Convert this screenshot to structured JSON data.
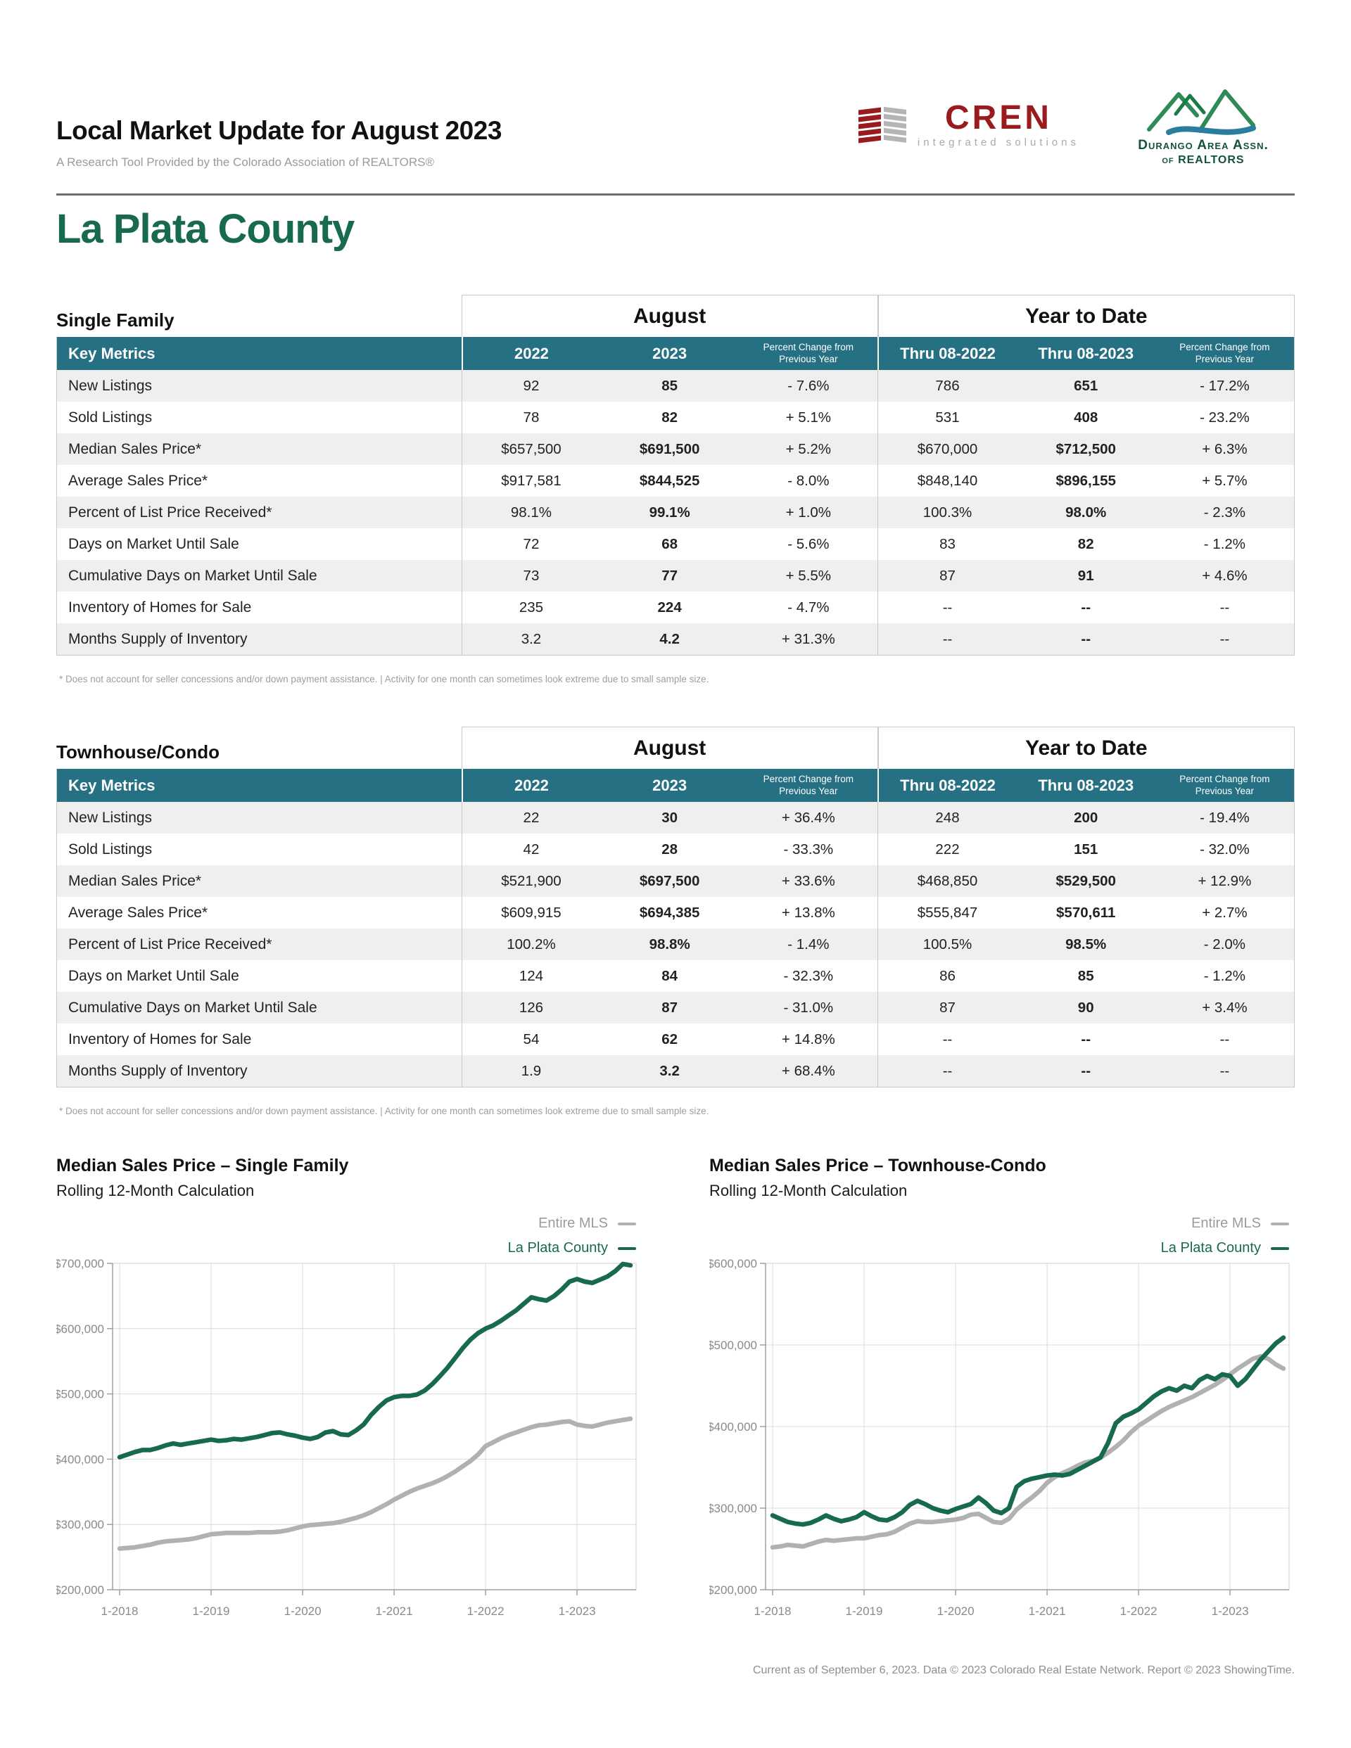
{
  "header": {
    "title": "Local Market Update for August 2023",
    "subtitle": "A Research Tool Provided by the Colorado Association of REALTORS®",
    "logos": {
      "cren": {
        "name": "CREN",
        "tagline": "integrated solutions",
        "accent_red": "#9a1b1e",
        "accent_gray": "#b5b5b5"
      },
      "daar": {
        "line1": "Durango Area Assn.",
        "line2": "of REALTORS",
        "accent_green": "#2e8b57",
        "accent_blue": "#2a7d9e"
      }
    }
  },
  "county": "La Plata County",
  "colors": {
    "accent_teal": "#267083",
    "brand_green": "#176a4b",
    "line_gray": "#b1b1b1",
    "row_stripe": "#efefef"
  },
  "tables": [
    {
      "section_label": "Single Family",
      "period_headers": [
        "August",
        "Year to Date"
      ],
      "columns": [
        "Key Metrics",
        "2022",
        "2023",
        "Percent Change from Previous Year",
        "Thru 08-2022",
        "Thru 08-2023",
        "Percent Change from Previous Year"
      ],
      "rows": [
        {
          "metric": "New Listings",
          "values": [
            "92",
            "85",
            "- 7.6%",
            "786",
            "651",
            "- 17.2%"
          ]
        },
        {
          "metric": "Sold Listings",
          "values": [
            "78",
            "82",
            "+ 5.1%",
            "531",
            "408",
            "- 23.2%"
          ]
        },
        {
          "metric": "Median Sales Price*",
          "values": [
            "$657,500",
            "$691,500",
            "+ 5.2%",
            "$670,000",
            "$712,500",
            "+ 6.3%"
          ]
        },
        {
          "metric": "Average Sales Price*",
          "values": [
            "$917,581",
            "$844,525",
            "- 8.0%",
            "$848,140",
            "$896,155",
            "+ 5.7%"
          ]
        },
        {
          "metric": "Percent of List Price Received*",
          "values": [
            "98.1%",
            "99.1%",
            "+ 1.0%",
            "100.3%",
            "98.0%",
            "- 2.3%"
          ]
        },
        {
          "metric": "Days on Market Until Sale",
          "values": [
            "72",
            "68",
            "- 5.6%",
            "83",
            "82",
            "- 1.2%"
          ]
        },
        {
          "metric": "Cumulative Days on Market Until Sale",
          "values": [
            "73",
            "77",
            "+ 5.5%",
            "87",
            "91",
            "+ 4.6%"
          ]
        },
        {
          "metric": "Inventory of Homes for Sale",
          "values": [
            "235",
            "224",
            "- 4.7%",
            "--",
            "--",
            "--"
          ]
        },
        {
          "metric": "Months Supply of Inventory",
          "values": [
            "3.2",
            "4.2",
            "+ 31.3%",
            "--",
            "--",
            "--"
          ]
        }
      ],
      "footnote": "* Does not account for seller concessions and/or down payment assistance.  |  Activity for one month can sometimes look extreme due to small sample size."
    },
    {
      "section_label": "Townhouse/Condo",
      "period_headers": [
        "August",
        "Year to Date"
      ],
      "columns": [
        "Key Metrics",
        "2022",
        "2023",
        "Percent Change from Previous Year",
        "Thru 08-2022",
        "Thru 08-2023",
        "Percent Change from Previous Year"
      ],
      "rows": [
        {
          "metric": "New Listings",
          "values": [
            "22",
            "30",
            "+ 36.4%",
            "248",
            "200",
            "- 19.4%"
          ]
        },
        {
          "metric": "Sold Listings",
          "values": [
            "42",
            "28",
            "- 33.3%",
            "222",
            "151",
            "- 32.0%"
          ]
        },
        {
          "metric": "Median Sales Price*",
          "values": [
            "$521,900",
            "$697,500",
            "+ 33.6%",
            "$468,850",
            "$529,500",
            "+ 12.9%"
          ]
        },
        {
          "metric": "Average Sales Price*",
          "values": [
            "$609,915",
            "$694,385",
            "+ 13.8%",
            "$555,847",
            "$570,611",
            "+ 2.7%"
          ]
        },
        {
          "metric": "Percent of List Price Received*",
          "values": [
            "100.2%",
            "98.8%",
            "- 1.4%",
            "100.5%",
            "98.5%",
            "- 2.0%"
          ]
        },
        {
          "metric": "Days on Market Until Sale",
          "values": [
            "124",
            "84",
            "- 32.3%",
            "86",
            "85",
            "- 1.2%"
          ]
        },
        {
          "metric": "Cumulative Days on Market Until Sale",
          "values": [
            "126",
            "87",
            "- 31.0%",
            "87",
            "90",
            "+ 3.4%"
          ]
        },
        {
          "metric": "Inventory of Homes for Sale",
          "values": [
            "54",
            "62",
            "+ 14.8%",
            "--",
            "--",
            "--"
          ]
        },
        {
          "metric": "Months Supply of Inventory",
          "values": [
            "1.9",
            "3.2",
            "+ 68.4%",
            "--",
            "--",
            "--"
          ]
        }
      ],
      "footnote": "* Does not account for seller concessions and/or down payment assistance.  |  Activity for one month can sometimes look extreme due to small sample size."
    }
  ],
  "chart_data": [
    {
      "type": "line",
      "title": "Median Sales Price – Single Family",
      "subtitle": "Rolling 12-Month Calculation",
      "legend_position": "top-right",
      "grid": true,
      "x_range": {
        "start": "1-2018",
        "end": "8-2023",
        "cadence": "monthly",
        "points": 68
      },
      "x_ticks": [
        {
          "label": "1-2018",
          "m": 0
        },
        {
          "label": "1-2019",
          "m": 12
        },
        {
          "label": "1-2020",
          "m": 24
        },
        {
          "label": "1-2021",
          "m": 36
        },
        {
          "label": "1-2022",
          "m": 48
        },
        {
          "label": "1-2023",
          "m": 60
        }
      ],
      "y_axis": {
        "min_usd_k": 200,
        "max_usd_k": 700,
        "tick_step_usd_k": 100,
        "tick_labels": [
          "$200,000",
          "$300,000",
          "$400,000",
          "$500,000",
          "$600,000",
          "$700,000"
        ]
      },
      "series": [
        {
          "name": "Entire MLS",
          "color": "#b1b1b1",
          "values_usd_k": [
            263,
            264,
            265,
            267,
            269,
            272,
            274,
            275,
            276,
            277,
            279,
            282,
            285,
            286,
            287,
            287,
            287,
            287,
            288,
            288,
            288,
            289,
            291,
            294,
            297,
            299,
            300,
            301,
            302,
            304,
            307,
            310,
            314,
            319,
            325,
            331,
            338,
            344,
            350,
            355,
            359,
            363,
            368,
            374,
            381,
            389,
            397,
            407,
            420,
            426,
            432,
            437,
            441,
            445,
            449,
            452,
            453,
            455,
            457,
            458,
            453,
            451,
            450,
            453,
            456,
            458,
            460,
            462
          ]
        },
        {
          "name": "La Plata County",
          "color": "#176a4b",
          "values_usd_k": [
            403,
            407,
            411,
            414,
            414,
            417,
            421,
            424,
            422,
            424,
            426,
            428,
            430,
            428,
            429,
            431,
            430,
            432,
            434,
            437,
            440,
            441,
            438,
            436,
            433,
            431,
            434,
            441,
            443,
            438,
            437,
            444,
            453,
            468,
            480,
            490,
            495,
            497,
            497,
            499,
            505,
            515,
            527,
            540,
            555,
            570,
            583,
            593,
            600,
            605,
            612,
            620,
            628,
            638,
            648,
            645,
            643,
            650,
            660,
            672,
            676,
            672,
            670,
            675,
            680,
            688,
            699,
            697
          ]
        }
      ]
    },
    {
      "type": "line",
      "title": "Median Sales Price – Townhouse-Condo",
      "subtitle": "Rolling 12-Month Calculation",
      "legend_position": "top-right",
      "grid": true,
      "x_range": {
        "start": "1-2018",
        "end": "8-2023",
        "cadence": "monthly",
        "points": 68
      },
      "x_ticks": [
        {
          "label": "1-2018",
          "m": 0
        },
        {
          "label": "1-2019",
          "m": 12
        },
        {
          "label": "1-2020",
          "m": 24
        },
        {
          "label": "1-2021",
          "m": 36
        },
        {
          "label": "1-2022",
          "m": 48
        },
        {
          "label": "1-2023",
          "m": 60
        }
      ],
      "y_axis": {
        "min_usd_k": 200,
        "max_usd_k": 600,
        "tick_step_usd_k": 100,
        "tick_labels": [
          "$200,000",
          "$300,000",
          "$400,000",
          "$500,000",
          "$600,000"
        ]
      },
      "series": [
        {
          "name": "Entire MLS",
          "color": "#b1b1b1",
          "values_usd_k": [
            252,
            253,
            255,
            254,
            253,
            256,
            259,
            261,
            260,
            261,
            262,
            263,
            263,
            265,
            267,
            268,
            271,
            276,
            281,
            284,
            283,
            283,
            284,
            285,
            286,
            288,
            292,
            293,
            288,
            283,
            282,
            287,
            298,
            306,
            313,
            321,
            331,
            338,
            343,
            347,
            352,
            356,
            358,
            362,
            368,
            375,
            383,
            393,
            401,
            407,
            413,
            419,
            424,
            428,
            432,
            436,
            441,
            446,
            451,
            457,
            464,
            471,
            477,
            483,
            486,
            483,
            476,
            471
          ]
        },
        {
          "name": "La Plata County",
          "color": "#176a4b",
          "values_usd_k": [
            291,
            287,
            283,
            281,
            280,
            282,
            286,
            291,
            287,
            284,
            286,
            289,
            295,
            290,
            286,
            285,
            289,
            295,
            304,
            309,
            305,
            300,
            297,
            295,
            299,
            302,
            305,
            313,
            306,
            297,
            294,
            300,
            326,
            333,
            336,
            338,
            340,
            341,
            340,
            342,
            347,
            352,
            357,
            362,
            380,
            404,
            412,
            416,
            421,
            429,
            437,
            443,
            447,
            444,
            450,
            447,
            457,
            462,
            458,
            464,
            462,
            450,
            458,
            470,
            482,
            492,
            502,
            509
          ]
        }
      ]
    }
  ],
  "footer": "Current as of September 6, 2023. Data © 2023 Colorado Real Estate Network. Report © 2023 ShowingTime."
}
